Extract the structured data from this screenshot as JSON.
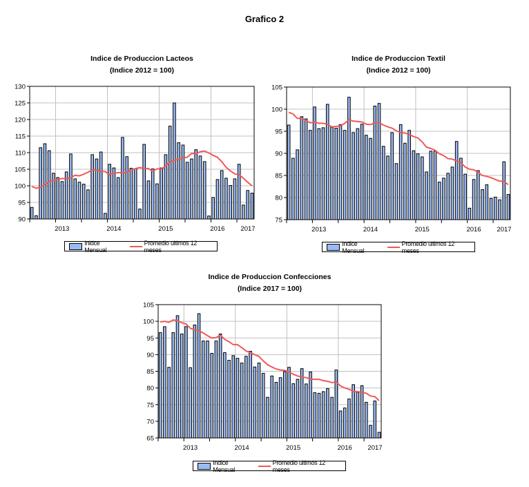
{
  "page": {
    "title": "Grafico 2"
  },
  "colors": {
    "bar_fill": "#99bbf5",
    "bar_stroke": "#000000",
    "line": "#f05858",
    "grid": "#c0c0c0"
  },
  "chart_data": [
    {
      "id": "lacteos",
      "type": "bar",
      "title": "Indice de Produccion Lacteos",
      "subtitle": "(Indice 2012 =  100)",
      "xlabel": "",
      "ylabel": "",
      "ylim": [
        90,
        130
      ],
      "yticks": [
        90,
        95,
        100,
        105,
        110,
        115,
        120,
        125,
        130
      ],
      "xtick_labels": [
        "2013",
        "2014",
        "2015",
        "2016",
        "2017"
      ],
      "grid": true,
      "legend": [
        "Inidce Mensual",
        "Promedio ultimos 12 meses"
      ],
      "legend_position": "bottom",
      "series": [
        {
          "name": "Inidce Mensual",
          "type": "bar",
          "values": [
            93.5,
            91.0,
            111.5,
            112.7,
            110.6,
            103.8,
            102.5,
            101.3,
            104.2,
            109.6,
            102.1,
            101.1,
            100.5,
            98.8,
            109.4,
            108.1,
            110.2,
            91.7,
            106.5,
            105.4,
            102.5,
            114.6,
            108.8,
            105.3,
            105.1,
            93.0,
            112.5,
            101.5,
            105.1,
            100.6,
            105.4,
            109.4,
            118.0,
            125.0,
            113.0,
            112.3,
            107.1,
            108.1,
            110.9,
            109.0,
            107.3,
            90.9,
            96.5,
            101.9,
            104.6,
            102.3,
            100.1,
            102.1,
            106.5,
            94.2,
            98.6,
            97.8
          ]
        },
        {
          "name": "Promedio ultimos 12 meses",
          "type": "line",
          "values": [
            99.8,
            99.3,
            99.5,
            100.4,
            101.3,
            101.7,
            101.9,
            102.2,
            102.1,
            102.4,
            103.2,
            103.0,
            103.5,
            104.1,
            104.8,
            104.7,
            104.4,
            104.3,
            103.3,
            103.7,
            104.0,
            103.9,
            104.1,
            104.7,
            105.2,
            105.5,
            105.3,
            105.2,
            104.4,
            105.1,
            105.1,
            105.9,
            107.2,
            107.7,
            108.0,
            108.4,
            108.6,
            109.8,
            109.6,
            110.3,
            110.5,
            109.9,
            109.2,
            108.6,
            107.3,
            105.6,
            104.5,
            103.6,
            103.4,
            102.3,
            101.1,
            100.0
          ]
        }
      ]
    },
    {
      "id": "textil",
      "type": "bar",
      "title": "Indice de Produccion Textil",
      "subtitle": "(Indice 2012 =  100)",
      "xlabel": "",
      "ylabel": "",
      "ylim": [
        75,
        105
      ],
      "yticks": [
        75,
        80,
        85,
        90,
        95,
        100,
        105
      ],
      "xtick_labels": [
        "2013",
        "2014",
        "2015",
        "2016",
        "2017"
      ],
      "grid": true,
      "legend": [
        "Indice Mensual",
        "Promedio ultimos 12 meses"
      ],
      "legend_position": "bottom",
      "series": [
        {
          "name": "Indice Mensual",
          "type": "bar",
          "values": [
            96.4,
            88.9,
            90.8,
            98.3,
            97.8,
            95.2,
            100.5,
            95.6,
            95.8,
            101.1,
            95.9,
            95.7,
            96.5,
            95.2,
            102.7,
            94.7,
            95.6,
            96.6,
            94.1,
            93.4,
            100.7,
            101.3,
            91.6,
            89.4,
            94.7,
            87.7,
            96.5,
            92.3,
            95.2,
            90.6,
            89.9,
            89.2,
            85.8,
            90.5,
            90.5,
            83.5,
            84.4,
            85.5,
            86.9,
            92.7,
            88.9,
            85.3,
            77.6,
            84.1,
            86.1,
            81.8,
            82.9,
            79.8,
            80.1,
            79.5,
            88.1,
            80.7
          ]
        },
        {
          "name": "Promedio ultimos 12 meses",
          "type": "line",
          "values": [
            99.3,
            98.9,
            97.9,
            97.9,
            97.4,
            96.9,
            97.1,
            96.8,
            96.8,
            96.6,
            96.0,
            96.1,
            96.2,
            96.8,
            97.6,
            97.3,
            97.2,
            97.1,
            96.6,
            96.5,
            96.9,
            96.9,
            96.4,
            96.0,
            95.7,
            95.1,
            94.7,
            94.6,
            94.3,
            93.8,
            93.5,
            92.6,
            91.4,
            91.1,
            90.7,
            89.9,
            89.5,
            88.8,
            88.7,
            88.3,
            87.9,
            86.9,
            86.4,
            86.3,
            85.7,
            85.0,
            84.8,
            84.5,
            84.1,
            83.7,
            83.7,
            82.9
          ]
        }
      ]
    },
    {
      "id": "confecciones",
      "type": "bar",
      "title": "Indice de Produccion Confecciones",
      "subtitle": "(Indice 2017 = 100)",
      "xlabel": "",
      "ylabel": "",
      "ylim": [
        65,
        105
      ],
      "yticks": [
        65,
        70,
        75,
        80,
        85,
        90,
        95,
        100,
        105
      ],
      "xtick_labels": [
        "2013",
        "2014",
        "2015",
        "2016",
        "2017"
      ],
      "grid": true,
      "legend": [
        "Indice Mensual",
        "Promedio ultimos 12 meses"
      ],
      "legend_position": "bottom",
      "series": [
        {
          "name": "Indice Mensual",
          "type": "bar",
          "values": [
            96.6,
            98.4,
            86.2,
            96.6,
            101.7,
            96.2,
            98.4,
            86.1,
            98.9,
            102.3,
            94.1,
            94.1,
            90.4,
            94.1,
            96.2,
            90.6,
            88.3,
            89.7,
            88.9,
            87.5,
            89.5,
            91.0,
            86.3,
            87.5,
            84.4,
            77.2,
            83.6,
            81.7,
            83.1,
            84.9,
            86.2,
            81.3,
            82.6,
            85.8,
            81.2,
            84.8,
            78.6,
            78.4,
            78.9,
            79.8,
            77.2,
            85.4,
            73.1,
            74.0,
            76.7,
            81.0,
            78.7,
            80.7,
            75.7,
            68.8,
            76.1,
            66.7
          ]
        },
        {
          "name": "Promedio ultimos 12 meses",
          "type": "line",
          "values": [
            99.8,
            100.0,
            99.7,
            100.4,
            100.2,
            99.6,
            99.2,
            97.9,
            97.4,
            97.2,
            96.5,
            95.7,
            95.0,
            95.1,
            95.9,
            94.6,
            93.9,
            93.0,
            93.0,
            92.1,
            91.1,
            90.6,
            90.0,
            89.5,
            88.1,
            87.0,
            86.3,
            85.7,
            85.4,
            85.3,
            84.8,
            84.1,
            83.6,
            83.3,
            83.1,
            82.7,
            82.6,
            82.6,
            82.2,
            82.0,
            81.6,
            81.8,
            80.6,
            80.0,
            79.6,
            79.0,
            78.9,
            78.7,
            78.4,
            77.6,
            77.4,
            76.2
          ]
        }
      ]
    }
  ]
}
